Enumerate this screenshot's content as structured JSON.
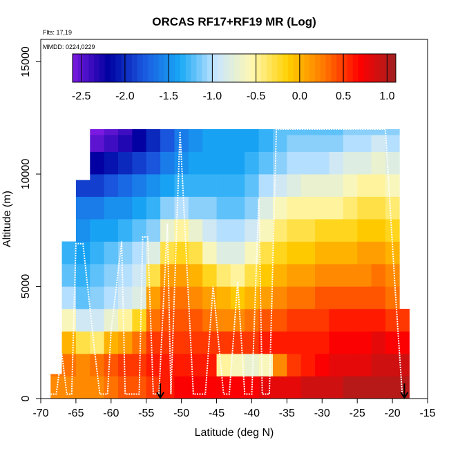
{
  "chart_data": {
    "type": "heatmap",
    "title": "ORCAS RF17+RF19 MR (Log)",
    "notes": [
      "Flts: 17,19",
      "MMDD: 0224,0229"
    ],
    "xlabel": "Latitude (deg N)",
    "ylabel": "Altitude (m)",
    "xlim": [
      -70,
      -15
    ],
    "ylim": [
      0,
      16000
    ],
    "x_ticks": [
      -70,
      -65,
      -60,
      -55,
      -50,
      -45,
      -40,
      -35,
      -30,
      -25,
      -20,
      -15
    ],
    "y_ticks": [
      0,
      5000,
      10000,
      15000
    ],
    "colorbar": {
      "range": [
        -2.6,
        1.1
      ],
      "ticks": [
        -2.5,
        -2.0,
        -1.5,
        -1.0,
        -0.5,
        0.0,
        0.5,
        1.0
      ],
      "tick_labels": [
        "-2.5",
        "-2.0",
        "-1.5",
        "-1.0",
        "-0.5",
        "0.0",
        "0.5",
        "1.0"
      ],
      "colors": [
        "#7a1ae0",
        "#0000a0",
        "#1a5ae0",
        "#18a8f5",
        "#c8e6ff",
        "#fff8b0",
        "#ffd000",
        "#ff7800",
        "#ff0000",
        "#a02020"
      ]
    },
    "heatmap_extent": {
      "lat_start": -68.6,
      "lat_end": -17.6,
      "alt_top": 12000,
      "top_edge_profile": [
        [
          -68.6,
          0
        ],
        [
          -67.5,
          1500
        ],
        [
          -66.5,
          5000
        ],
        [
          -65.8,
          7800
        ],
        [
          -64.5,
          9200
        ],
        [
          -63,
          10800
        ],
        [
          -62.5,
          12000
        ],
        [
          -17.6,
          12000
        ]
      ]
    },
    "grid": [
      {
        "lat": -68,
        "values": [
          0.2,
          0.3,
          0.3,
          0.3,
          0.3,
          null,
          null,
          null,
          null,
          null,
          null,
          null,
          null
        ]
      },
      {
        "lat": -66,
        "values": [
          0.2,
          0.3,
          0.0,
          -0.6,
          -1.0,
          -1.2,
          -1.3,
          -1.4,
          null,
          null,
          null,
          null,
          null
        ]
      },
      {
        "lat": -64,
        "values": [
          0.2,
          0.2,
          -0.3,
          -0.9,
          -1.2,
          -1.3,
          -1.4,
          -1.5,
          -1.6,
          -1.9,
          -2.1,
          null,
          null
        ]
      },
      {
        "lat": -62,
        "values": [
          0.2,
          0.3,
          -0.4,
          -0.9,
          -1.1,
          -1.2,
          -1.3,
          -1.4,
          -1.6,
          -1.9,
          -2.2,
          -2.5,
          -2.6
        ]
      },
      {
        "lat": -60,
        "values": [
          0.3,
          0.4,
          0.0,
          -0.7,
          -1.0,
          -1.1,
          -1.2,
          -1.4,
          -1.5,
          -1.8,
          -2.1,
          -2.4,
          -2.5
        ]
      },
      {
        "lat": -58,
        "values": [
          0.4,
          0.5,
          0.1,
          -0.5,
          -0.9,
          -1.0,
          -1.1,
          -1.3,
          -1.5,
          -1.7,
          -2.0,
          -2.3,
          -2.4
        ]
      },
      {
        "lat": -56,
        "values": [
          0.4,
          0.5,
          0.3,
          -0.2,
          -0.8,
          -0.9,
          -1.0,
          -1.2,
          -1.4,
          -1.6,
          -1.9,
          -2.2,
          -2.2
        ]
      },
      {
        "lat": -54,
        "values": [
          0.5,
          0.6,
          0.5,
          0.3,
          0.1,
          -0.3,
          -0.8,
          -1.1,
          -1.3,
          -1.5,
          -1.8,
          -2.0,
          -2.0
        ]
      },
      {
        "lat": -52,
        "values": [
          0.6,
          0.6,
          0.5,
          0.4,
          0.3,
          0.1,
          -0.3,
          -0.7,
          -1.1,
          -1.4,
          -1.6,
          -1.8,
          -1.8
        ]
      },
      {
        "lat": -50,
        "values": [
          0.7,
          0.6,
          0.5,
          0.4,
          0.3,
          0.1,
          -0.2,
          -0.5,
          -1.0,
          -1.3,
          -1.5,
          -1.6,
          -1.6
        ]
      },
      {
        "lat": -48,
        "values": [
          0.7,
          0.6,
          0.5,
          0.4,
          0.2,
          0.0,
          -0.3,
          -0.7,
          -1.1,
          -1.3,
          -1.4,
          -1.5,
          -1.5
        ]
      },
      {
        "lat": -46,
        "values": [
          0.7,
          0.6,
          0.5,
          0.3,
          0.1,
          -0.2,
          -0.6,
          -0.9,
          -1.1,
          -1.3,
          -1.4,
          -1.4,
          -1.4
        ]
      },
      {
        "lat": -44,
        "values": [
          0.7,
          -0.5,
          0.5,
          0.2,
          0.0,
          -0.4,
          -0.8,
          -1.0,
          -1.2,
          -1.3,
          -1.4,
          -1.4,
          -1.4
        ]
      },
      {
        "lat": -42,
        "values": [
          0.7,
          -0.6,
          0.5,
          0.2,
          -0.1,
          -0.5,
          -0.8,
          -1.0,
          -1.2,
          -1.3,
          -1.4,
          -1.4,
          -1.4
        ]
      },
      {
        "lat": -40,
        "values": [
          0.7,
          -0.7,
          0.5,
          0.3,
          0.0,
          -0.3,
          -0.6,
          -0.9,
          -1.1,
          -1.2,
          -1.3,
          -1.4,
          -1.4
        ]
      },
      {
        "lat": -38,
        "values": [
          0.8,
          -0.6,
          0.6,
          0.4,
          0.1,
          -0.1,
          -0.3,
          -0.6,
          -0.8,
          -1.0,
          -1.2,
          -1.3,
          -1.3
        ]
      },
      {
        "lat": -36,
        "values": [
          0.8,
          0.2,
          0.6,
          0.4,
          0.2,
          0.0,
          -0.2,
          -0.4,
          -0.6,
          -0.9,
          -1.1,
          -1.2,
          -1.2
        ]
      },
      {
        "lat": -34,
        "values": [
          0.8,
          0.5,
          0.6,
          0.5,
          0.3,
          0.1,
          -0.1,
          -0.3,
          -0.5,
          -0.8,
          -1.0,
          -1.1,
          -1.2
        ]
      },
      {
        "lat": -32,
        "values": [
          0.9,
          0.6,
          0.6,
          0.5,
          0.3,
          0.1,
          -0.1,
          -0.3,
          -0.5,
          -0.7,
          -1.0,
          -1.1,
          -1.2
        ]
      },
      {
        "lat": -30,
        "values": [
          0.9,
          0.7,
          0.6,
          0.5,
          0.4,
          0.2,
          0.0,
          -0.2,
          -0.5,
          -0.7,
          -1.0,
          -1.1,
          -1.2
        ]
      },
      {
        "lat": -28,
        "values": [
          0.9,
          0.8,
          0.7,
          0.6,
          0.4,
          0.2,
          0.0,
          -0.2,
          -0.5,
          -0.7,
          -0.9,
          -1.1,
          -1.2
        ]
      },
      {
        "lat": -26,
        "values": [
          1.0,
          0.8,
          0.7,
          0.6,
          0.4,
          0.2,
          0.0,
          -0.2,
          -0.4,
          -0.6,
          -0.8,
          -1.0,
          -1.1
        ]
      },
      {
        "lat": -24,
        "values": [
          1.0,
          0.8,
          0.7,
          0.6,
          0.4,
          0.2,
          0.1,
          -0.1,
          -0.3,
          -0.5,
          -0.8,
          -1.0,
          -1.1
        ]
      },
      {
        "lat": -22,
        "values": [
          1.0,
          0.9,
          0.8,
          0.6,
          0.4,
          0.3,
          0.1,
          -0.1,
          -0.3,
          -0.5,
          -0.7,
          -0.9,
          -1.1
        ]
      },
      {
        "lat": -20,
        "values": [
          1.0,
          0.9,
          0.7,
          0.5,
          0.3,
          0.2,
          0.0,
          -0.2,
          -0.4,
          -0.6,
          -0.8,
          -1.0,
          -1.1
        ]
      },
      {
        "lat": -18,
        "values": [
          1.0,
          0.9,
          0.7,
          0.5,
          null,
          null,
          null,
          null,
          null,
          null,
          null,
          null,
          null
        ]
      }
    ],
    "grid_altitude_centers": [
      500,
      1500,
      2500,
      3500,
      4500,
      5500,
      6500,
      7500,
      8500,
      9500,
      10500,
      11500,
      12000
    ],
    "flight_track": [
      [
        -68.6,
        200
      ],
      [
        -67.8,
        200
      ],
      [
        -67,
        2000
      ],
      [
        -66.3,
        200
      ],
      [
        -65.6,
        200
      ],
      [
        -65,
        6900
      ],
      [
        -64,
        6900
      ],
      [
        -62.3,
        2000
      ],
      [
        -61.6,
        200
      ],
      [
        -60.5,
        200
      ],
      [
        -60,
        3000
      ],
      [
        -58.5,
        7000
      ],
      [
        -58,
        200
      ],
      [
        -56,
        200
      ],
      [
        -55.5,
        7200
      ],
      [
        -54.8,
        7200
      ],
      [
        -54,
        200
      ],
      [
        -53.2,
        200
      ],
      [
        -52,
        7800
      ],
      [
        -51.5,
        200
      ],
      [
        -50.2,
        11900
      ],
      [
        -48.3,
        200
      ],
      [
        -46.6,
        200
      ],
      [
        -45.5,
        5000
      ],
      [
        -44,
        200
      ],
      [
        -43.2,
        200
      ],
      [
        -42,
        5200
      ],
      [
        -41,
        200
      ],
      [
        -40,
        200
      ],
      [
        -39,
        8900
      ],
      [
        -38.5,
        200
      ],
      [
        -37.5,
        200
      ],
      [
        -36.5,
        12000
      ],
      [
        -21,
        12000
      ],
      [
        -19.6,
        4800
      ],
      [
        -18.6,
        200
      ]
    ],
    "sonde_markers": [
      -53,
      -18.3
    ]
  }
}
